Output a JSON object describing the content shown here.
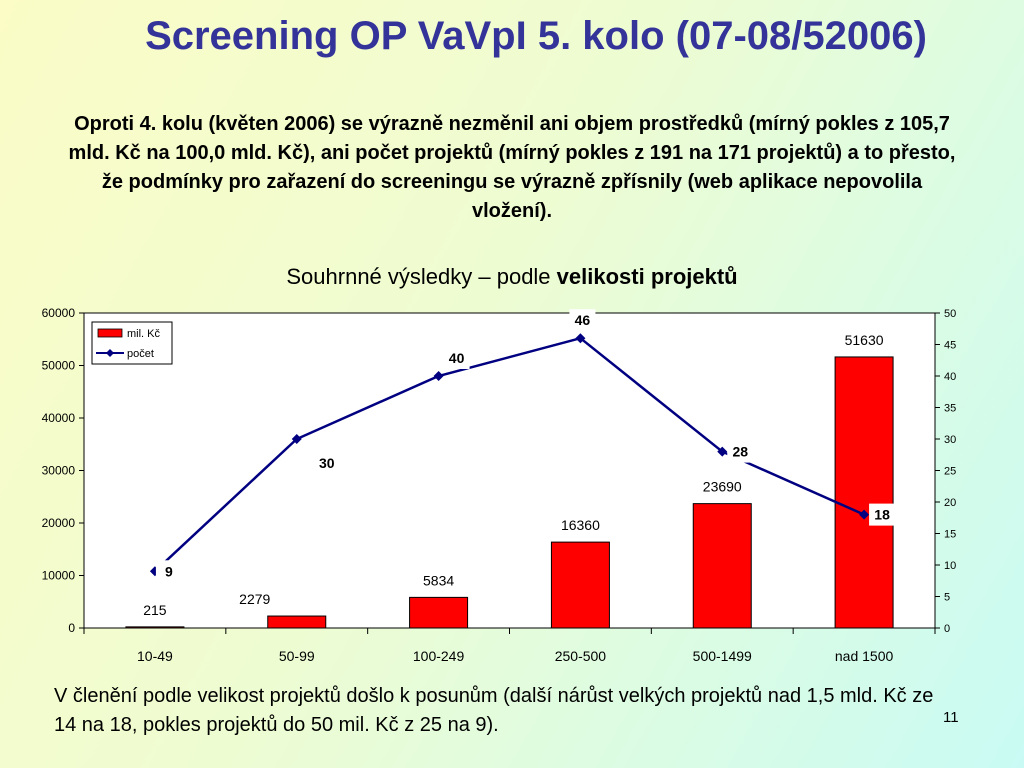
{
  "slide": {
    "title": "Screening OP VaVpI 5. kolo (07-08/52006)",
    "intro": "Oproti 4. kolu (květen 2006) se výrazně nezměnil ani objem prostředků (mírný pokles z 105,7 mld. Kč na 100,0 mld. Kč), ani počet projektů (mírný pokles z 191 na 171 projektů) a to přesto, že podmínky pro zařazení do screeningu se výrazně zpřísnily (web aplikace nepovolila vložení).",
    "chart_title_normal": "Souhrnné výsledky – podle ",
    "chart_title_bold": "velikosti projektů",
    "note": "V členění podle velikost projektů došlo k posunům (další nárůst velkých projektů nad 1,5 mld. Kč ze 14 na 18, pokles projektů do 50 mil. Kč z 25 na 9).",
    "page_number": "11"
  },
  "chart_data": {
    "type": "bar",
    "categories": [
      "10-49",
      "50-99",
      "100-249",
      "250-500",
      "500-1499",
      "nad 1500"
    ],
    "series": [
      {
        "name": "mil. Kč",
        "type": "bar",
        "axis": "left",
        "color": "#ff0000",
        "values": [
          215,
          2279,
          5834,
          16360,
          23690,
          51630
        ]
      },
      {
        "name": "počet",
        "type": "line",
        "axis": "right",
        "color": "#000080",
        "values": [
          9,
          30,
          40,
          46,
          28,
          18
        ]
      }
    ],
    "ylim": [
      0,
      60000
    ],
    "yticks": [
      0,
      10000,
      20000,
      30000,
      40000,
      50000,
      60000
    ],
    "y2lim": [
      0,
      50
    ],
    "y2ticks": [
      0,
      5,
      10,
      15,
      20,
      25,
      30,
      35,
      40,
      45,
      50
    ],
    "legend": "top-left",
    "grid": false
  }
}
